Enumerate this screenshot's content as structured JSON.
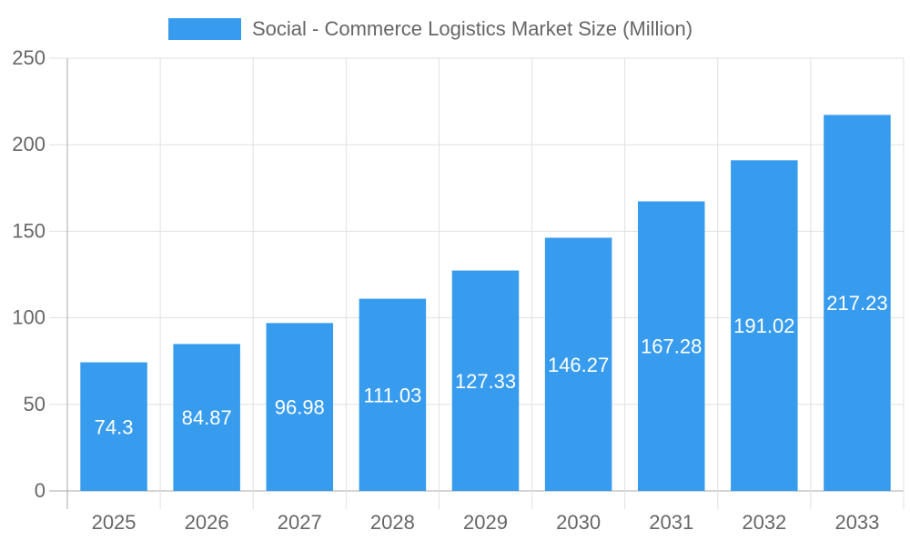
{
  "chart_data": {
    "type": "bar",
    "title": "",
    "xlabel": "",
    "ylabel": "",
    "categories": [
      "2025",
      "2026",
      "2027",
      "2028",
      "2029",
      "2030",
      "2031",
      "2032",
      "2033"
    ],
    "series": [
      {
        "name": "Social - Commerce Logistics Market Size (Million)",
        "values": [
          74.3,
          84.87,
          96.98,
          111.03,
          127.33,
          146.27,
          167.28,
          191.02,
          217.23
        ],
        "color": "#389cee"
      }
    ],
    "data_labels": [
      "74.3",
      "84.87",
      "96.98",
      "111.03",
      "127.33",
      "146.27",
      "167.28",
      "191.02",
      "217.23"
    ],
    "ylim": [
      0,
      250
    ],
    "yticks": [
      "0",
      "50",
      "100",
      "150",
      "200",
      "250"
    ],
    "grid": true,
    "legend_position": "top"
  }
}
